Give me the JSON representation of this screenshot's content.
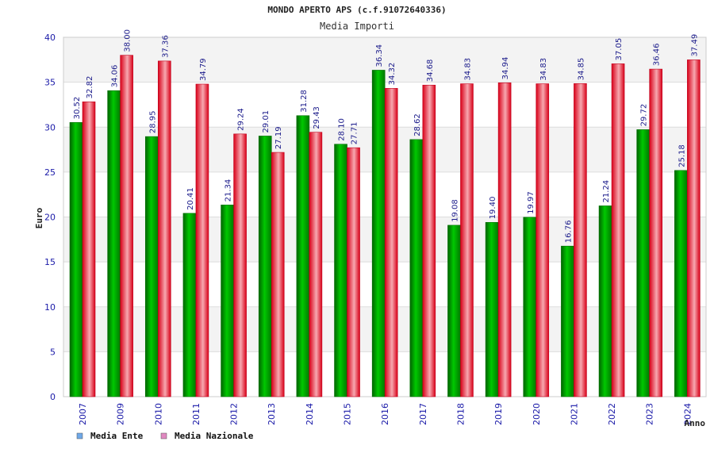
{
  "chart_data": {
    "type": "bar",
    "title": "MONDO APERTO APS (c.f.91072640336)",
    "subtitle": "Media Importi",
    "xlabel": "Anno",
    "ylabel": "Euro",
    "ylim": [
      0,
      40
    ],
    "yticks": [
      "0",
      "5",
      "10",
      "15",
      "20",
      "25",
      "30",
      "35",
      "40"
    ],
    "grid": true,
    "legend_position": "bottom-left",
    "categories": [
      "2007",
      "2009",
      "2010",
      "2011",
      "2012",
      "2013",
      "2014",
      "2015",
      "2016",
      "2017",
      "2018",
      "2019",
      "2020",
      "2021",
      "2022",
      "2023",
      "2024"
    ],
    "series": [
      {
        "name": "Media Ente",
        "color": "#00b400",
        "legend_color": "#6fa8e8",
        "values": [
          30.52,
          34.06,
          28.95,
          20.41,
          21.34,
          29.01,
          31.28,
          28.1,
          36.34,
          28.62,
          19.08,
          19.4,
          19.97,
          16.76,
          21.24,
          29.72,
          25.18
        ],
        "labels": [
          "30.52",
          "34.06",
          "28.95",
          "20.41",
          "21.34",
          "29.01",
          "31.28",
          "28.10",
          "36.34",
          "28.62",
          "19.08",
          "19.40",
          "19.97",
          "16.76",
          "21.24",
          "29.72",
          "25.18"
        ]
      },
      {
        "name": "Media Nazionale",
        "color": "#e8202c",
        "legend_color": "#e088c0",
        "values": [
          32.82,
          38.0,
          37.36,
          34.79,
          29.24,
          27.19,
          29.43,
          27.71,
          34.32,
          34.68,
          34.83,
          34.94,
          34.83,
          34.85,
          37.05,
          36.46,
          37.49
        ],
        "labels": [
          "32.82",
          "38.00",
          "37.36",
          "34.79",
          "29.24",
          "27.19",
          "29.43",
          "27.71",
          "34.32",
          "34.68",
          "34.83",
          "34.94",
          "34.83",
          "34.85",
          "37.05",
          "36.46",
          "37.49"
        ]
      }
    ]
  }
}
